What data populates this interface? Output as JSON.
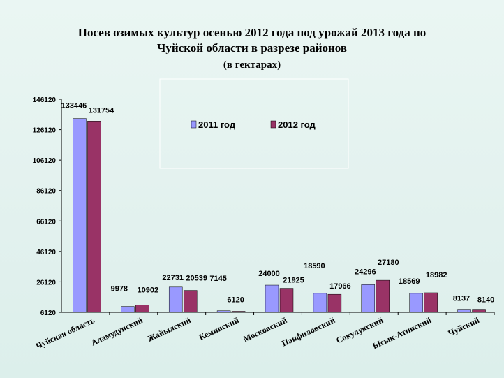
{
  "chart_data": {
    "type": "bar",
    "title": [
      "Посев озимых культур осенью 2012 года под урожай 2013 года по",
      "Чуйской области в разрезе районов",
      "(в гектарах)"
    ],
    "categories": [
      "Чуйская область",
      "Аламудунский",
      "Жайылский",
      "Кеминский",
      "Московский",
      "Панфиловский",
      "Сокулукский",
      "Ысык-Атинский",
      "Чуйский"
    ],
    "series": [
      {
        "name": "2011 год",
        "color": "#9999ff",
        "values": [
          133446,
          9978,
          22731,
          7145,
          24000,
          18590,
          24296,
          18569,
          8137
        ]
      },
      {
        "name": "2012 год",
        "color": "#993366",
        "values": [
          131754,
          10902,
          20539,
          6120,
          21925,
          17966,
          27180,
          18982,
          8140
        ]
      }
    ],
    "yticks": [
      6120,
      26120,
      46120,
      66120,
      86120,
      106120,
      126120,
      146120
    ],
    "ylim": [
      6120,
      146120
    ],
    "grid": false,
    "legend": "top-center"
  }
}
